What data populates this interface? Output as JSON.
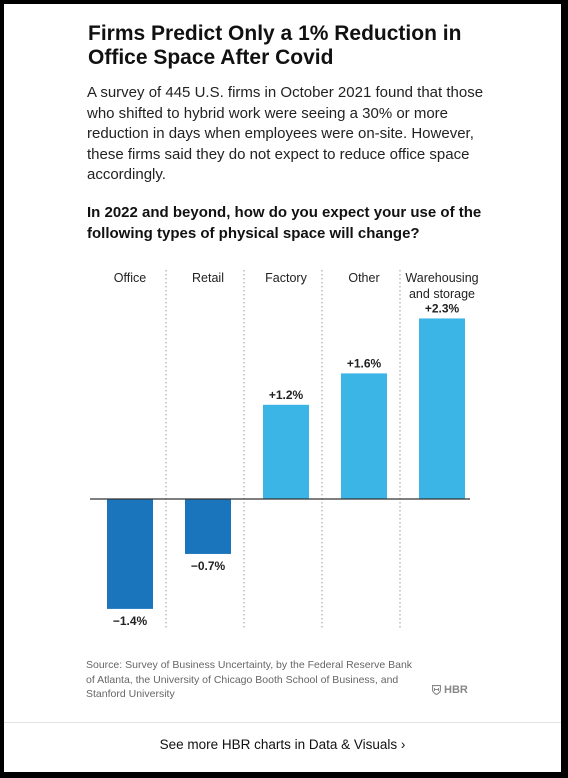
{
  "header": {
    "title": "Firms Predict Only a 1% Reduction in Office Space After Covid",
    "description": "A survey of 445 U.S. firms in October 2021 found that those who shifted to hybrid work were seeing a 30% or more reduction in days when employees were on-site. However, these firms said they do not expect to reduce office space accordingly."
  },
  "chart_data": {
    "type": "bar",
    "title": "In 2022 and beyond, how do you expect your use of the following types of physical space will change?",
    "categories": [
      "Office",
      "Retail",
      "Factory",
      "Other",
      "Warehousing and storage"
    ],
    "category_lines": [
      [
        "Office"
      ],
      [
        "Retail"
      ],
      [
        "Factory"
      ],
      [
        "Other"
      ],
      [
        "Warehousing",
        "and storage"
      ]
    ],
    "values": [
      -1.4,
      -0.7,
      1.2,
      1.6,
      2.3
    ],
    "value_labels": [
      "−1.4%",
      "−0.7%",
      "+1.2%",
      "+1.6%",
      "+2.3%"
    ],
    "ylim": [
      -1.5,
      2.5
    ],
    "grid": false,
    "colors": {
      "negative": "#1a75bc",
      "positive": "#3bb4e6",
      "divider": "#9a9a9a",
      "baseline": "#333333"
    }
  },
  "source": "Source: Survey of Business Uncertainty, by the Federal Reserve Bank of Atlanta, the University of Chicago Booth School of Business, and Stanford University",
  "logo": {
    "text": "HBR",
    "icon": "shield-icon"
  },
  "footer": {
    "link_text": "See more HBR charts in Data & Visuals ›"
  }
}
